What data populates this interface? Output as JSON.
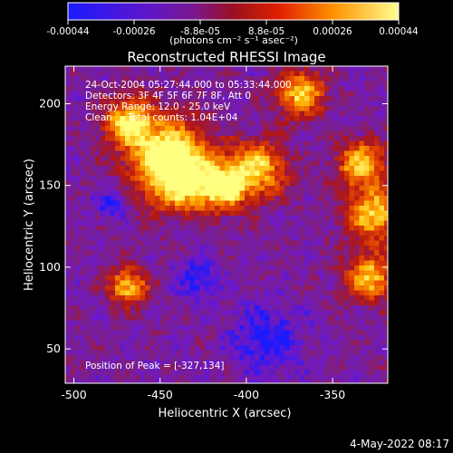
{
  "chart_data": {
    "type": "heatmap",
    "title": "Reconstructed RHESSI Image",
    "xlabel": "Heliocentric X (arcsec)",
    "ylabel": "Heliocentric Y (arcsec)",
    "xlim": [
      -505,
      -318
    ],
    "ylim": [
      29,
      223
    ],
    "x_ticks": [
      -500,
      -450,
      -400,
      -350
    ],
    "y_ticks": [
      50,
      100,
      150,
      200
    ],
    "colorbar": {
      "range": [
        -0.00044,
        0.00044
      ],
      "ticks": [
        "-0.00044",
        "-0.00026",
        "-8.8e-05",
        "8.8e-05",
        "0.00026",
        "0.00044"
      ],
      "unit": "(photons cm⁻² s⁻¹ asec⁻²)",
      "colors": [
        "#1a1aff",
        "#6e18c8",
        "#7a1f8a",
        "#b01515",
        "#e84a00",
        "#ffb000",
        "#ffff80"
      ]
    },
    "annotations": [
      "24-Oct-2004 05:27:44.000 to 05:33:44.000",
      "Detectors: 3F 4F 5F 6F 7F 8F, Att 0",
      "Energy Range: 12.0 - 25.0 keV",
      "Clean     Total counts: 1.04E+04"
    ],
    "peak_label": "Position of Peak = [-327,134]",
    "peak": [
      -327,
      134
    ],
    "bright_regions": [
      {
        "x": -470,
        "y": 190,
        "w": 10
      },
      {
        "x": -448,
        "y": 172,
        "w": 16
      },
      {
        "x": -440,
        "y": 155,
        "w": 14
      },
      {
        "x": -415,
        "y": 150,
        "w": 10
      },
      {
        "x": -395,
        "y": 162,
        "w": 12
      },
      {
        "x": -370,
        "y": 208,
        "w": 10
      },
      {
        "x": -335,
        "y": 165,
        "w": 10
      },
      {
        "x": -327,
        "y": 134,
        "w": 12
      },
      {
        "x": -330,
        "y": 95,
        "w": 10
      },
      {
        "x": -470,
        "y": 90,
        "w": 8
      }
    ],
    "dim_regions": [
      {
        "x": -390,
        "y": 58,
        "w": 14
      },
      {
        "x": -480,
        "y": 140,
        "w": 6
      },
      {
        "x": -430,
        "y": 95,
        "w": 8
      }
    ]
  },
  "footer": {
    "date": "4-May-2022 08:17"
  }
}
